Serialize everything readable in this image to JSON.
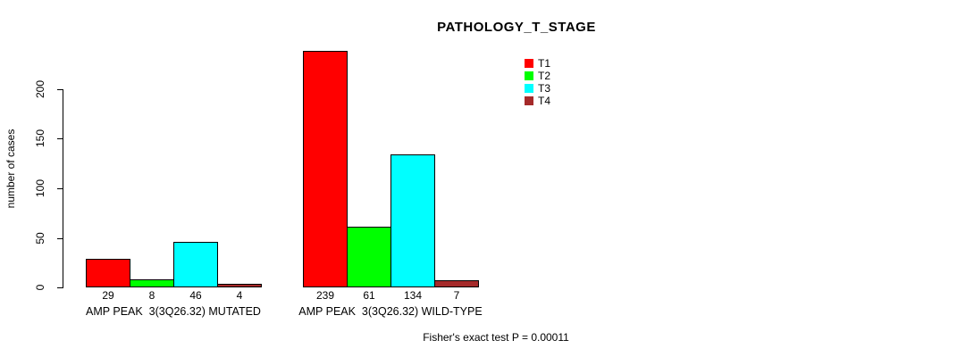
{
  "chart_data": {
    "type": "bar",
    "title": "PATHOLOGY_T_STAGE",
    "ylabel": "number of cases",
    "xlabel": "",
    "yticks": [
      0,
      50,
      100,
      150,
      200
    ],
    "ylim": [
      0,
      243
    ],
    "grid": false,
    "legend_position": "top-right",
    "series": [
      {
        "name": "T1",
        "color": "#FF0000"
      },
      {
        "name": "T2",
        "color": "#00FF00"
      },
      {
        "name": "T3",
        "color": "#00FFFF"
      },
      {
        "name": "T4",
        "color": "#A52A2A"
      }
    ],
    "groups": [
      {
        "label": "AMP PEAK  3(3Q26.32) MUTATED",
        "values": [
          29,
          8,
          46,
          4
        ]
      },
      {
        "label": "AMP PEAK  3(3Q26.32) WILD-TYPE",
        "values": [
          239,
          61,
          134,
          7
        ]
      }
    ],
    "bar_value_labels": true,
    "annotation": "Fisher's exact test P = 0.00011"
  }
}
